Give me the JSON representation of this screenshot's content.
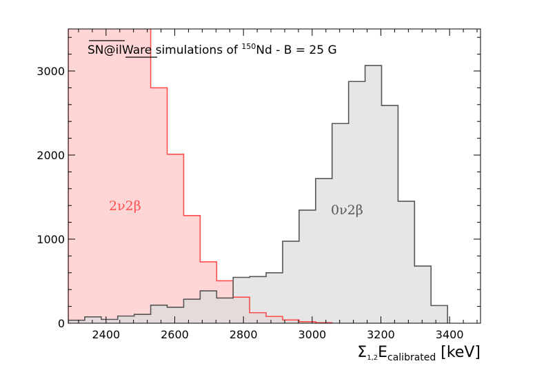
{
  "chart_data": {
    "type": "bar",
    "title": {
      "brand_overline": "SN",
      "brand_mid": "@il",
      "brand_underline": "Ware",
      "text_before_sup": " simulations of ",
      "sup": "150",
      "text_after_sup": "Nd - B = 25 G"
    },
    "xlabel": {
      "sigma": "Σ",
      "sub_1": "1,2",
      "e": "E",
      "sub_2": "calibrated",
      "unit": " [keV]"
    },
    "ylabel": "",
    "xlim": [
      2290,
      3490
    ],
    "ylim": [
      0,
      3500
    ],
    "xticks": [
      2400,
      2600,
      2800,
      3000,
      3200,
      3400
    ],
    "yticks": [
      0,
      1000,
      2000,
      3000
    ],
    "bin_width": 48,
    "series": [
      {
        "name": "2ν2β",
        "color": "#ff4d4d",
        "fill": "#ffd6d6",
        "bin_edges": [
          2290,
          2338,
          2386,
          2434,
          2482,
          2530,
          2578,
          2626,
          2674,
          2722,
          2770,
          2818,
          2866,
          2914,
          2962,
          3010,
          3058
        ],
        "values": [
          3600,
          3600,
          3600,
          3600,
          3600,
          2800,
          2010,
          1280,
          730,
          505,
          310,
          125,
          80,
          38,
          18,
          6
        ]
      },
      {
        "name": "0ν2β",
        "color": "#555555",
        "fill": "#dcdcdc",
        "bin_edges": [
          2290,
          2338,
          2386,
          2434,
          2482,
          2530,
          2578,
          2626,
          2674,
          2722,
          2770,
          2818,
          2866,
          2914,
          2962,
          3010,
          3058,
          3106,
          3154,
          3202,
          3250,
          3298,
          3346,
          3394
        ],
        "values": [
          35,
          75,
          45,
          85,
          105,
          215,
          190,
          285,
          385,
          300,
          545,
          555,
          600,
          975,
          1345,
          1720,
          2375,
          2875,
          3065,
          2590,
          1450,
          680,
          210
        ]
      }
    ]
  }
}
